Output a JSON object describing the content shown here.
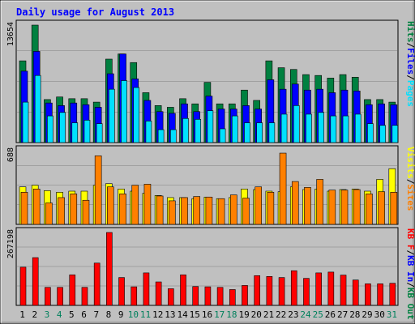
{
  "chart_data": [
    {
      "type": "bar",
      "title": "Daily usage for August 2013",
      "categories": [
        "1",
        "2",
        "3",
        "4",
        "5",
        "6",
        "7",
        "8",
        "9",
        "10",
        "11",
        "12",
        "13",
        "14",
        "15",
        "16",
        "17",
        "18",
        "19",
        "20",
        "21",
        "22",
        "23",
        "24",
        "25",
        "26",
        "27",
        "28",
        "29",
        "30",
        "31"
      ],
      "weekend_days": [
        "3",
        "4",
        "10",
        "11",
        "17",
        "18",
        "24",
        "25",
        "31"
      ],
      "ymax_label": "13654",
      "legend": [
        {
          "label": "Hits",
          "color": "#008040"
        },
        {
          "label": "Files",
          "color": "#0000ff"
        },
        {
          "label": "Pages",
          "color": "#00e0ff"
        }
      ],
      "separator": "/",
      "ylim": [
        0,
        13654
      ],
      "series": [
        {
          "name": "Hits",
          "values": [
            9500,
            13654,
            5000,
            5300,
            5100,
            5100,
            4700,
            9700,
            10300,
            9300,
            5800,
            4300,
            4100,
            5100,
            4500,
            7000,
            4500,
            4500,
            6100,
            4900,
            9500,
            8700,
            8500,
            7900,
            7800,
            7500,
            7900,
            7600,
            5000,
            5000,
            4700
          ]
        },
        {
          "name": "Files",
          "values": [
            8300,
            10600,
            4600,
            4300,
            4600,
            4400,
            4100,
            8000,
            10300,
            7400,
            4900,
            3600,
            3400,
            4500,
            3600,
            5400,
            3900,
            3900,
            4300,
            3900,
            7300,
            6200,
            6800,
            6100,
            6200,
            5800,
            6100,
            6000,
            4400,
            4500,
            4400
          ]
        },
        {
          "name": "Pages",
          "values": [
            4700,
            7800,
            3100,
            3500,
            2300,
            2600,
            2200,
            6200,
            7200,
            6400,
            2500,
            1500,
            1500,
            2800,
            2700,
            3700,
            1600,
            3100,
            2300,
            2300,
            2300,
            3300,
            4300,
            3300,
            3500,
            3100,
            3100,
            3300,
            2200,
            2000,
            2000
          ]
        }
      ]
    },
    {
      "type": "bar",
      "ymax_label": "688",
      "legend": [
        {
          "label": "Visits",
          "color": "#ffff00"
        },
        {
          "label": "Sites",
          "color": "#ff8000"
        }
      ],
      "separator": "/",
      "ylim": [
        0,
        688
      ],
      "series": [
        {
          "name": "Visits",
          "values": [
            350,
            365,
            315,
            300,
            310,
            310,
            365,
            380,
            330,
            310,
            290,
            270,
            250,
            250,
            240,
            255,
            240,
            250,
            330,
            325,
            310,
            305,
            350,
            325,
            330,
            310,
            325,
            330,
            310,
            420,
            520
          ]
        },
        {
          "name": "Sites",
          "values": [
            300,
            330,
            200,
            250,
            285,
            225,
            640,
            350,
            285,
            365,
            375,
            265,
            220,
            250,
            260,
            255,
            240,
            275,
            245,
            350,
            300,
            665,
            400,
            345,
            420,
            320,
            320,
            325,
            285,
            305,
            300
          ]
        }
      ]
    },
    {
      "type": "bar",
      "ymax_label": "267198",
      "legend": [
        {
          "label": "KB F",
          "color": "#ff0000"
        },
        {
          "label": "KB In",
          "color": "#0000ff"
        },
        {
          "label": "KB Out",
          "color": "#008040"
        }
      ],
      "separator": "/",
      "ylim": [
        0,
        267198
      ],
      "series": [
        {
          "name": "KB F",
          "values": [
            140000,
            175000,
            66000,
            66000,
            112000,
            66000,
            155000,
            267198,
            102000,
            68000,
            119000,
            86000,
            61000,
            112000,
            69000,
            68000,
            66000,
            58000,
            73000,
            109000,
            106000,
            102000,
            127000,
            99000,
            119000,
            122000,
            111000,
            93000,
            79000,
            79000,
            81000
          ]
        }
      ]
    }
  ],
  "colors": {
    "background": "#c0c0c0",
    "title": "#0000ff",
    "weekend_label": "#00805c",
    "weekday_label": "#000000",
    "frame": "#000000"
  }
}
